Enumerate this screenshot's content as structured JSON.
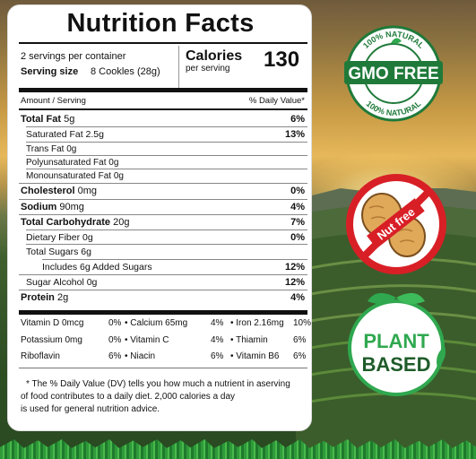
{
  "title": "Nutrition Facts",
  "servings": "2 servings per container",
  "serving_size_label": "Serving size",
  "serving_size_value": "8 Cookles (28g)",
  "calories_label": "Calories",
  "calories_sub": "per serving",
  "calories_value": "130",
  "header_left": "Amount / Serving",
  "header_right": "% Daily Value*",
  "rows": [
    {
      "label": "Total Fat",
      "amount": "5g",
      "dv": "6%"
    },
    {
      "label": "Saturated Fat",
      "amount": "2.5g",
      "dv": "13%"
    },
    {
      "label": "Trans Fat",
      "amount": "0g",
      "dv": ""
    },
    {
      "label": "Polyunsaturated Fat",
      "amount": "0g",
      "dv": ""
    },
    {
      "label": "Monounsaturated Fat",
      "amount": "0g",
      "dv": ""
    },
    {
      "label": "Cholesterol",
      "amount": "0mg",
      "dv": "0%"
    },
    {
      "label": "Sodium",
      "amount": "90mg",
      "dv": "4%"
    },
    {
      "label": "Total Carbohydrate",
      "amount": "20g",
      "dv": "7%"
    },
    {
      "label": "Dietary Fiber",
      "amount": "0g",
      "dv": "0%"
    },
    {
      "label": "Total Sugars",
      "amount": "6g",
      "dv": ""
    },
    {
      "label": "Includes 6g Added Sugars",
      "amount": "",
      "dv": "12%"
    },
    {
      "label": "Sugar Alcohol",
      "amount": "0g",
      "dv": "12%"
    },
    {
      "label": "Protein",
      "amount": "2g",
      "dv": "4%"
    }
  ],
  "vitamins": [
    [
      {
        "label": "Vitamin D 0mcg",
        "dv": "0%"
      },
      {
        "label": "• Calcium 65mg",
        "dv": "4%"
      },
      {
        "label": "• Iron 2.16mg",
        "dv": "10%"
      }
    ],
    [
      {
        "label": "Potassium 0mg",
        "dv": "0%"
      },
      {
        "label": "• Vitamin C",
        "dv": "4%"
      },
      {
        "label": "• Thiamin",
        "dv": "6%"
      }
    ],
    [
      {
        "label": "Riboflavin",
        "dv": "6%"
      },
      {
        "label": "• Niacin",
        "dv": "6%"
      },
      {
        "label": "• Vitamin B6",
        "dv": "6%"
      }
    ]
  ],
  "footnote": [
    "* The % Daily Value (DV) tells you how much a nutrient in aserving",
    "of food contributes to a daily diet. 2,000 calories a day",
    "is used for general nutrition advice."
  ],
  "badges": {
    "gmo": {
      "top": "100% NATURAL",
      "main": "GMO FREE",
      "bottom": "100% NATURAL",
      "color": "#1f7a3a"
    },
    "nut": {
      "label": "Nut free",
      "color": "#d81f26"
    },
    "plant": {
      "line1": "PLANT",
      "line2": "BASED",
      "color": "#2fa84f"
    }
  }
}
